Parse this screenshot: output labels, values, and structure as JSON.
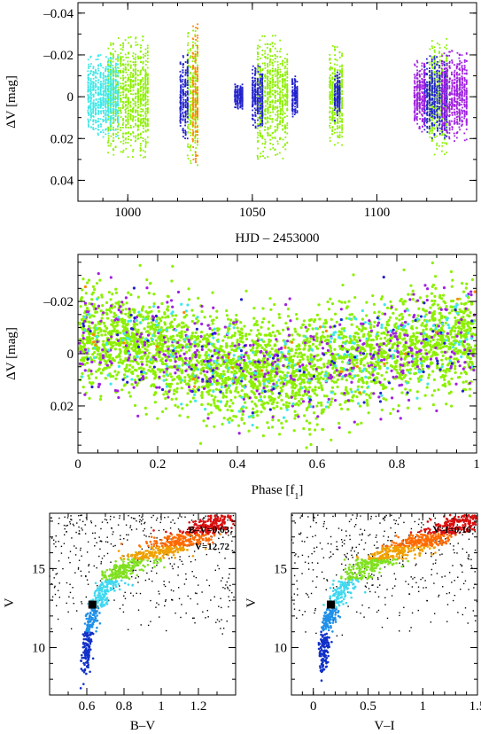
{
  "chart_data": [
    {
      "id": "lightcurve",
      "type": "scatter",
      "title": "",
      "xlabel": "HJD – 2453000",
      "ylabel": "ΔV [mag]",
      "xlim": [
        980,
        1140
      ],
      "ylim": [
        0.05,
        -0.045
      ],
      "xticks": [
        1000,
        1050,
        1100
      ],
      "xtick_labels": [
        "1000",
        "1050",
        "1100"
      ],
      "yticks": [
        -0.04,
        -0.02,
        0,
        0.02,
        0.04
      ],
      "ytick_labels": [
        "–0.04",
        "–0.02",
        "0",
        "0.02",
        "0.04"
      ],
      "series": [
        {
          "color": "#8cf000",
          "segments": [
            {
              "x": [
                992,
                1008
              ],
              "amp": 0.03
            },
            {
              "x": [
                1024,
                1028
              ],
              "amp": 0.033
            },
            {
              "x": [
                1052,
                1064
              ],
              "amp": 0.03
            },
            {
              "x": [
                1081,
                1086
              ],
              "amp": 0.025
            },
            {
              "x": [
                1121,
                1128
              ],
              "amp": 0.028
            }
          ]
        },
        {
          "color": "#40e8e8",
          "segments": [
            {
              "x": [
                984,
                996
              ],
              "amp": 0.02
            }
          ]
        },
        {
          "color": "#2222cc",
          "segments": [
            {
              "x": [
                1021,
                1024
              ],
              "amp": 0.02
            },
            {
              "x": [
                1043,
                1046
              ],
              "amp": 0.006
            },
            {
              "x": [
                1050,
                1054
              ],
              "amp": 0.015
            },
            {
              "x": [
                1066,
                1068
              ],
              "amp": 0.01
            },
            {
              "x": [
                1083,
                1085
              ],
              "amp": 0.012
            },
            {
              "x": [
                1119,
                1128
              ],
              "amp": 0.02
            }
          ]
        },
        {
          "color": "#a020e0",
          "segments": [
            {
              "x": [
                1115,
                1119
              ],
              "amp": 0.018
            },
            {
              "x": [
                1126,
                1136
              ],
              "amp": 0.022
            }
          ]
        },
        {
          "color": "#ff8800",
          "segments": [
            {
              "x": [
                1026,
                1028
              ],
              "amp": 0.035
            }
          ]
        }
      ]
    },
    {
      "id": "phase",
      "type": "scatter",
      "title": "",
      "xlabel": "Phase [f1]",
      "ylabel": "ΔV [mag]",
      "xlim": [
        0,
        1
      ],
      "ylim": [
        0.038,
        -0.038
      ],
      "xticks": [
        0,
        0.2,
        0.4,
        0.6,
        0.8,
        1
      ],
      "xtick_labels": [
        "0",
        "0.2",
        "0.4",
        "0.6",
        "0.8",
        "1"
      ],
      "yticks": [
        -0.02,
        0,
        0.02
      ],
      "ytick_labels": [
        "–0.02",
        "0",
        "0.02"
      ],
      "curve": {
        "amplitude": 0.006,
        "phase_of_max": 0.0,
        "scatter": 0.013
      },
      "series": [
        {
          "color": "#8cf000",
          "n": 3200
        },
        {
          "color": "#a020e0",
          "n": 450
        },
        {
          "color": "#40e8e8",
          "n": 260
        },
        {
          "color": "#2222cc",
          "n": 90
        },
        {
          "color": "#ff8800",
          "n": 25
        }
      ]
    },
    {
      "id": "cmd_bv",
      "type": "scatter",
      "title": "",
      "xlabel": "B–V",
      "ylabel": "V",
      "xlim": [
        0.4,
        1.4
      ],
      "ylim": [
        7,
        18.5
      ],
      "xticks": [
        0.6,
        0.8,
        1.0,
        1.2
      ],
      "xtick_labels": [
        "0.6",
        "0.8",
        "1",
        "1.2"
      ],
      "yticks": [
        10,
        15
      ],
      "ytick_labels": [
        "10",
        "15"
      ],
      "annotations": [
        "B–V=0.63",
        "V=12.72"
      ],
      "highlight": {
        "x": 0.63,
        "y": 12.72
      },
      "sequence": [
        [
          0.59,
          8.3
        ],
        [
          0.6,
          10.0
        ],
        [
          0.62,
          11.5
        ],
        [
          0.66,
          13.0
        ],
        [
          0.72,
          14.3
        ],
        [
          0.82,
          15.2
        ],
        [
          0.93,
          15.9
        ],
        [
          1.03,
          16.3
        ],
        [
          1.12,
          16.8
        ],
        [
          1.25,
          17.5
        ],
        [
          1.36,
          18.2
        ]
      ]
    },
    {
      "id": "cmd_vi",
      "type": "scatter",
      "title": "",
      "xlabel": "V–I",
      "ylabel": "V",
      "xlim": [
        -0.2,
        1.5
      ],
      "ylim": [
        7,
        18.5
      ],
      "xticks": [
        0,
        0.5,
        1,
        1.5
      ],
      "xtick_labels": [
        "0",
        "0.5",
        "1",
        "1.5"
      ],
      "yticks": [
        10,
        15
      ],
      "ytick_labels": [
        "10",
        "15"
      ],
      "annotations": [
        "V–I=0.16"
      ],
      "highlight": {
        "x": 0.16,
        "y": 12.72
      },
      "sequence": [
        [
          0.08,
          8.3
        ],
        [
          0.1,
          10.0
        ],
        [
          0.13,
          11.5
        ],
        [
          0.2,
          13.0
        ],
        [
          0.32,
          14.3
        ],
        [
          0.5,
          15.2
        ],
        [
          0.7,
          15.9
        ],
        [
          0.88,
          16.4
        ],
        [
          1.05,
          16.9
        ],
        [
          1.25,
          17.5
        ],
        [
          1.45,
          18.2
        ]
      ]
    }
  ]
}
